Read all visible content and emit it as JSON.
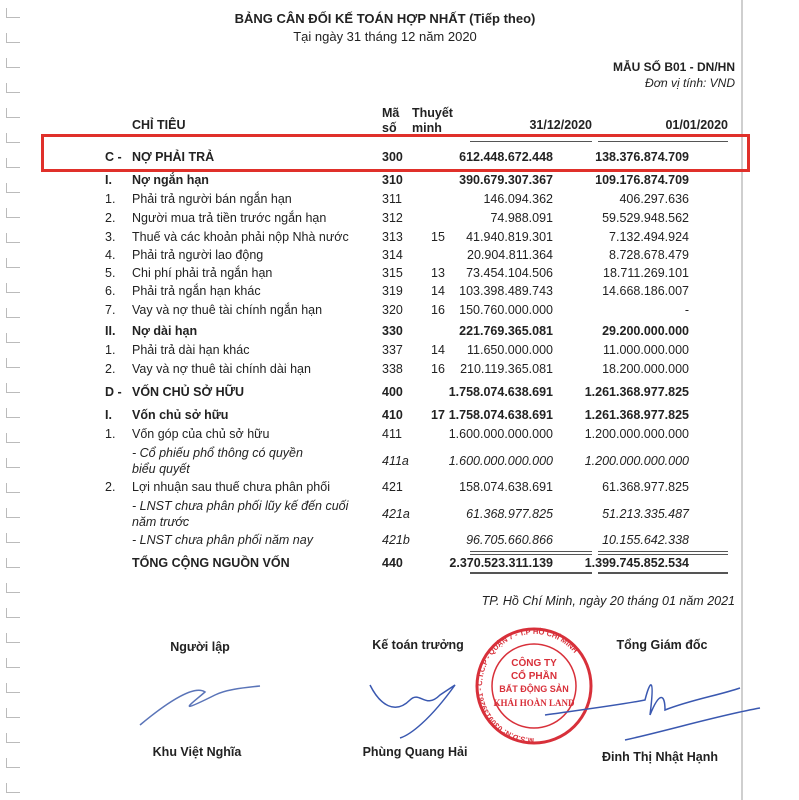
{
  "header": {
    "title": "BẢNG CÂN ĐỐI KẾ TOÁN HỢP NHẤT (Tiếp theo)",
    "subtitle": "Tại ngày 31 tháng 12 năm 2020",
    "form_code": "MẪU SỐ B01 - DN/HN",
    "unit": "Đơn vị tính: VND"
  },
  "columns": {
    "item": "CHỈ TIÊU",
    "code": "Mã số",
    "note": "Thuyết minh",
    "date1": "31/12/2020",
    "date2": "01/01/2020"
  },
  "highlight_color": "#e0302a",
  "rows": [
    {
      "prefix": "C -",
      "label": "NỢ PHẢI TRẢ",
      "code": "300",
      "note": "",
      "v1": "612.448.672.448",
      "v2": "138.376.874.709",
      "style": "bold"
    },
    {
      "prefix": "I.",
      "label": "Nợ ngắn hạn",
      "code": "310",
      "note": "",
      "v1": "390.679.307.367",
      "v2": "109.176.874.709",
      "style": "bold"
    },
    {
      "prefix": "1.",
      "label": "Phải trả người bán ngắn hạn",
      "code": "311",
      "note": "",
      "v1": "146.094.362",
      "v2": "406.297.636",
      "style": ""
    },
    {
      "prefix": "2.",
      "label": "Người mua trả tiền trước ngắn hạn",
      "code": "312",
      "note": "",
      "v1": "74.988.091",
      "v2": "59.529.948.562",
      "style": ""
    },
    {
      "prefix": "3.",
      "label": "Thuế và các khoản phải nộp Nhà nước",
      "code": "313",
      "note": "15",
      "v1": "41.940.819.301",
      "v2": "7.132.494.924",
      "style": ""
    },
    {
      "prefix": "4.",
      "label": "Phải trả người lao động",
      "code": "314",
      "note": "",
      "v1": "20.904.811.364",
      "v2": "8.728.678.479",
      "style": ""
    },
    {
      "prefix": "5.",
      "label": "Chi phí phải trả ngắn hạn",
      "code": "315",
      "note": "13",
      "v1": "73.454.104.506",
      "v2": "18.711.269.101",
      "style": ""
    },
    {
      "prefix": "6.",
      "label": "Phải trả ngắn hạn khác",
      "code": "319",
      "note": "14",
      "v1": "103.398.489.743",
      "v2": "14.668.186.007",
      "style": ""
    },
    {
      "prefix": "7.",
      "label": "Vay và nợ thuê tài chính ngắn hạn",
      "code": "320",
      "note": "16",
      "v1": "150.760.000.000",
      "v2": "-",
      "style": ""
    },
    {
      "prefix": "II.",
      "label": "Nợ dài hạn",
      "code": "330",
      "note": "",
      "v1": "221.769.365.081",
      "v2": "29.200.000.000",
      "style": "bold"
    },
    {
      "prefix": "1.",
      "label": "Phải trả dài hạn khác",
      "code": "337",
      "note": "14",
      "v1": "11.650.000.000",
      "v2": "11.000.000.000",
      "style": ""
    },
    {
      "prefix": "2.",
      "label": "Vay và nợ thuê tài chính dài hạn",
      "code": "338",
      "note": "16",
      "v1": "210.119.365.081",
      "v2": "18.200.000.000",
      "style": ""
    },
    {
      "prefix": "D -",
      "label": "VỐN CHỦ SỞ HỮU",
      "code": "400",
      "note": "",
      "v1": "1.758.074.638.691",
      "v2": "1.261.368.977.825",
      "style": "bold"
    },
    {
      "prefix": "I.",
      "label": "Vốn chủ sở hữu",
      "code": "410",
      "note": "17",
      "v1": "1.758.074.638.691",
      "v2": "1.261.368.977.825",
      "style": "bold"
    },
    {
      "prefix": "1.",
      "label": "Vốn góp của chủ sở hữu",
      "code": "411",
      "note": "",
      "v1": "1.600.000.000.000",
      "v2": "1.200.000.000.000",
      "style": ""
    },
    {
      "prefix": "",
      "label": "- Cổ phiếu phổ thông có quyền",
      "label2": "biểu quyết",
      "code": "411a",
      "note": "",
      "v1": "1.600.000.000.000",
      "v2": "1.200.000.000.000",
      "style": "it"
    },
    {
      "prefix": "2.",
      "label": "Lợi nhuận sau thuế chưa phân phối",
      "code": "421",
      "note": "",
      "v1": "158.074.638.691",
      "v2": "61.368.977.825",
      "style": ""
    },
    {
      "prefix": "",
      "label": "- LNST chưa phân phối lũy kế đến cuối",
      "label2": "năm trước",
      "code": "421a",
      "note": "",
      "v1": "61.368.977.825",
      "v2": "51.213.335.487",
      "style": "it"
    },
    {
      "prefix": "",
      "label": "- LNST chưa phân phối năm nay",
      "code": "421b",
      "note": "",
      "v1": "96.705.660.866",
      "v2": "10.155.642.338",
      "style": "it"
    },
    {
      "prefix": "",
      "label": "TỔNG CỘNG NGUỒN VỐN",
      "code": "440",
      "note": "",
      "v1": "2.370.523.311.139",
      "v2": "1.399.745.852.534",
      "style": "bold"
    }
  ],
  "footer": {
    "place_date": "TP. Hồ Chí Minh, ngày 20 tháng 01 năm 2021",
    "signers": [
      {
        "role": "Người lập",
        "name": "Khu Việt Nghĩa"
      },
      {
        "role": "Kế toán trưởng",
        "name": "Phùng Quang Hải"
      },
      {
        "role": "Tổng Giám đốc",
        "name": "Đinh Thị Nhật Hạnh"
      }
    ],
    "stamp": {
      "ring": "M.S.D.N: 0309139261 - C.T.C.P - QUẬN 7 - T.P HỒ CHÍ MINH",
      "lines": [
        "CÔNG TY",
        "CỔ PHẦN",
        "BẤT ĐỘNG SẢN",
        "KHẢI HOÀN LAND"
      ],
      "color": "#d8303a"
    }
  }
}
